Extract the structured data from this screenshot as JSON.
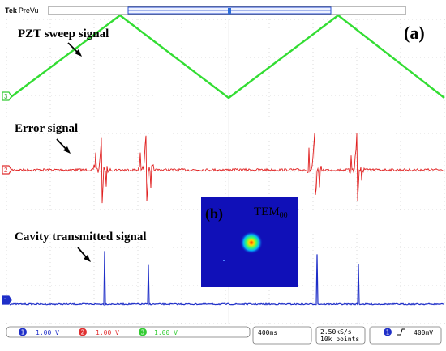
{
  "header": {
    "brand_prefix": "Tek",
    "brand_mode": "PreVu",
    "panel_label": "(a)"
  },
  "labels": {
    "pzt": "PZT sweep signal",
    "error": "Error signal",
    "cavity": "Cavity transmitted signal"
  },
  "inset": {
    "panel_label": "(b)",
    "mode_main": "TEM",
    "mode_sub": "00"
  },
  "channel_markers": {
    "ch3": "3",
    "ch2": "2",
    "ch1": "1"
  },
  "channels": [
    {
      "number": "1",
      "scale": "1.00 V",
      "color": "#1f2fc8"
    },
    {
      "number": "2",
      "scale": "1.00 V",
      "color": "#e03030"
    },
    {
      "number": "3",
      "scale": "1.00 V",
      "color": "#33cc33"
    }
  ],
  "timebase": "400ms",
  "acquisition": {
    "rate": "2.50kS/s",
    "points": "10k points"
  },
  "trigger": {
    "source": "1",
    "slope_icon": "rising-edge-icon",
    "level": "400mV"
  },
  "colors": {
    "grid": "#c8c8c8",
    "pzt": "#33dd33",
    "error": "#e02020",
    "cavity": "#1f2fc8",
    "inset_bg": "#1010b8"
  }
}
